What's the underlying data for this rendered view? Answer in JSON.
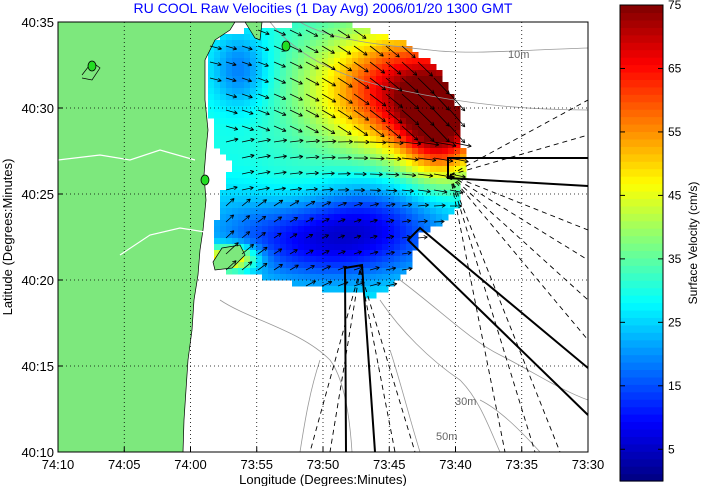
{
  "chart_data": {
    "type": "heatmap",
    "title": "RU COOL Raw Velocities (1 Day Avg) 2006/01/20 1300 GMT",
    "xlabel": "Longitude (Degrees:Minutes)",
    "ylabel": "Latitude (Degrees:Minutes)",
    "x_ticks": [
      "74:10",
      "74:05",
      "74:00",
      "73:55",
      "73:50",
      "73:45",
      "73:40",
      "73:35",
      "73:30"
    ],
    "y_ticks": [
      "40:35",
      "40:30",
      "40:25",
      "40:20",
      "40:15",
      "40:10"
    ],
    "xlim": [
      "74:10",
      "73:30"
    ],
    "ylim": [
      "40:10",
      "40:35"
    ],
    "grid": true,
    "colorbar": {
      "label": "Surface Velocity (cm/s)",
      "range": [
        0,
        75
      ],
      "ticks": [
        5,
        15,
        25,
        35,
        45,
        55,
        65,
        75
      ]
    },
    "contour_labels": [
      "10m",
      "30m",
      "50m"
    ],
    "land_color": "#7de87d",
    "site_marker_color": "#22dd22"
  }
}
